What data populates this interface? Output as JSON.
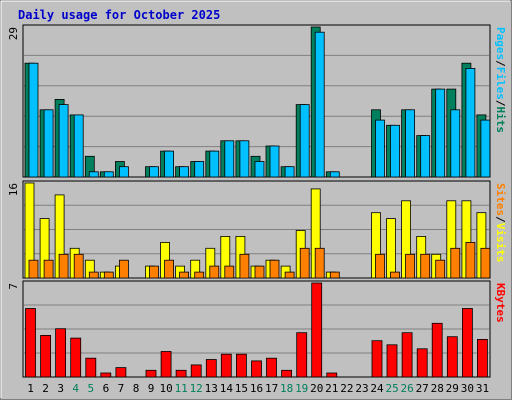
{
  "title": "Daily usage for October 2025",
  "colors": {
    "background": "#C0C0C0",
    "panel": "#C0C0C0",
    "title": "#0000CC",
    "hits": "#00805C",
    "files": "#00C0FF",
    "pages": "#00C0FF",
    "visits": "#FFFF00",
    "sites": "#FF8000",
    "kbytes": "#FF0000",
    "weekend_label": "#00805C",
    "weekday_label": "#000000"
  },
  "chart_data": [
    {
      "type": "bar",
      "panel": "hits-files-pages",
      "max_label": "29",
      "ylim": [
        0,
        29
      ],
      "right_label": [
        "Pages",
        "/",
        "Files",
        "/",
        "Hits"
      ],
      "categories": [
        "1",
        "2",
        "3",
        "4",
        "5",
        "6",
        "7",
        "8",
        "9",
        "10",
        "11",
        "12",
        "13",
        "14",
        "15",
        "16",
        "17",
        "18",
        "19",
        "20",
        "21",
        "22",
        "23",
        "24",
        "25",
        "26",
        "27",
        "28",
        "29",
        "30",
        "31"
      ],
      "series": [
        {
          "name": "Hits",
          "values": [
            22,
            13,
            15,
            12,
            4,
            1,
            3,
            0,
            2,
            5,
            2,
            3,
            5,
            7,
            7,
            4,
            6,
            2,
            14,
            29,
            1,
            0,
            0,
            13,
            10,
            13,
            8,
            17,
            17,
            22,
            12
          ]
        },
        {
          "name": "Files",
          "values": [
            22,
            13,
            14,
            12,
            1,
            1,
            2,
            0,
            2,
            5,
            2,
            3,
            5,
            7,
            7,
            3,
            6,
            2,
            14,
            28,
            1,
            0,
            0,
            11,
            10,
            13,
            8,
            17,
            13,
            21,
            11
          ]
        }
      ]
    },
    {
      "type": "bar",
      "panel": "visits-sites",
      "max_label": "16",
      "ylim": [
        0,
        16
      ],
      "right_label": [
        "Sites",
        "/",
        "Visits"
      ],
      "categories": [
        "1",
        "2",
        "3",
        "4",
        "5",
        "6",
        "7",
        "8",
        "9",
        "10",
        "11",
        "12",
        "13",
        "14",
        "15",
        "16",
        "17",
        "18",
        "19",
        "20",
        "21",
        "22",
        "23",
        "24",
        "25",
        "26",
        "27",
        "28",
        "29",
        "30",
        "31"
      ],
      "series": [
        {
          "name": "Visits",
          "values": [
            16,
            10,
            14,
            5,
            3,
            1,
            2,
            0,
            2,
            6,
            2,
            3,
            5,
            7,
            7,
            2,
            3,
            2,
            8,
            15,
            1,
            0,
            0,
            11,
            10,
            13,
            7,
            4,
            13,
            13,
            11
          ]
        },
        {
          "name": "Sites",
          "values": [
            3,
            3,
            4,
            4,
            1,
            1,
            3,
            0,
            2,
            3,
            1,
            1,
            2,
            2,
            4,
            2,
            3,
            1,
            5,
            5,
            1,
            0,
            0,
            4,
            1,
            4,
            4,
            3,
            5,
            6,
            5
          ]
        }
      ]
    },
    {
      "type": "bar",
      "panel": "kbytes",
      "max_label": "7",
      "ylim": [
        0,
        7
      ],
      "right_label": [
        "KBytes"
      ],
      "categories": [
        "1",
        "2",
        "3",
        "4",
        "5",
        "6",
        "7",
        "8",
        "9",
        "10",
        "11",
        "12",
        "13",
        "14",
        "15",
        "16",
        "17",
        "18",
        "19",
        "20",
        "21",
        "22",
        "23",
        "24",
        "25",
        "26",
        "27",
        "28",
        "29",
        "30",
        "31"
      ],
      "weekend_days": [
        4,
        5,
        11,
        12,
        18,
        19,
        25,
        26
      ],
      "series": [
        {
          "name": "KBytes",
          "values": [
            5.1,
            3.1,
            3.6,
            2.9,
            1.4,
            0.3,
            0.7,
            0,
            0.5,
            1.9,
            0.5,
            0.9,
            1.3,
            1.7,
            1.7,
            1.2,
            1.4,
            0.5,
            3.3,
            7.0,
            0.3,
            0,
            0,
            2.7,
            2.4,
            3.3,
            2.1,
            4.0,
            3.0,
            5.1,
            2.8
          ]
        }
      ]
    }
  ]
}
